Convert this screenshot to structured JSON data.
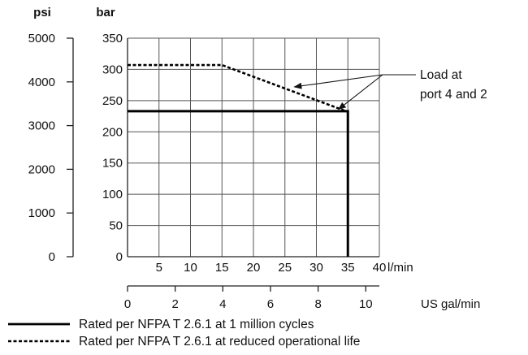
{
  "chart_data": {
    "type": "line",
    "title": "",
    "units": {
      "psi": "psi",
      "bar": "bar",
      "lmin": "l/min",
      "usgal": "US gal/min"
    },
    "psi_ticks": [
      0,
      1000,
      2000,
      3000,
      4000,
      5000
    ],
    "psi_ylim": [
      0,
      5000
    ],
    "bar_ticks": [
      0,
      50,
      100,
      150,
      200,
      250,
      300,
      350
    ],
    "bar_ylim": [
      0,
      350
    ],
    "lmin_ticks": [
      5,
      10,
      15,
      20,
      25,
      30,
      35,
      40
    ],
    "lmin_xlim": [
      0,
      40
    ],
    "usgal_ticks": [
      0,
      2,
      4,
      6,
      8,
      10
    ],
    "usgal_xlim": [
      0,
      10.57
    ],
    "grid": true,
    "series": [
      {
        "name": "Rated per NFPA T 2.6.1 at 1 million cycles",
        "style": "solid",
        "x": [
          0,
          35,
          35
        ],
        "y": [
          233,
          233,
          0
        ]
      },
      {
        "name": "Rated per NFPA T 2.6.1 at reduced operational life",
        "style": "dashed",
        "x": [
          0,
          15,
          35
        ],
        "y": [
          307,
          307,
          232
        ]
      }
    ],
    "annotation": {
      "lines": [
        "Load at",
        "port 4 and 2"
      ],
      "targets": [
        {
          "x": 26.5,
          "y": 272
        },
        {
          "x": 33.5,
          "y": 236
        }
      ]
    },
    "legend": [
      {
        "label": "Rated per NFPA T 2.6.1 at 1 million cycles",
        "style": "solid"
      },
      {
        "label": "Rated per NFPA T 2.6.1 at reduced operational life",
        "style": "dashed"
      }
    ],
    "legend_position": "bottom-left"
  }
}
